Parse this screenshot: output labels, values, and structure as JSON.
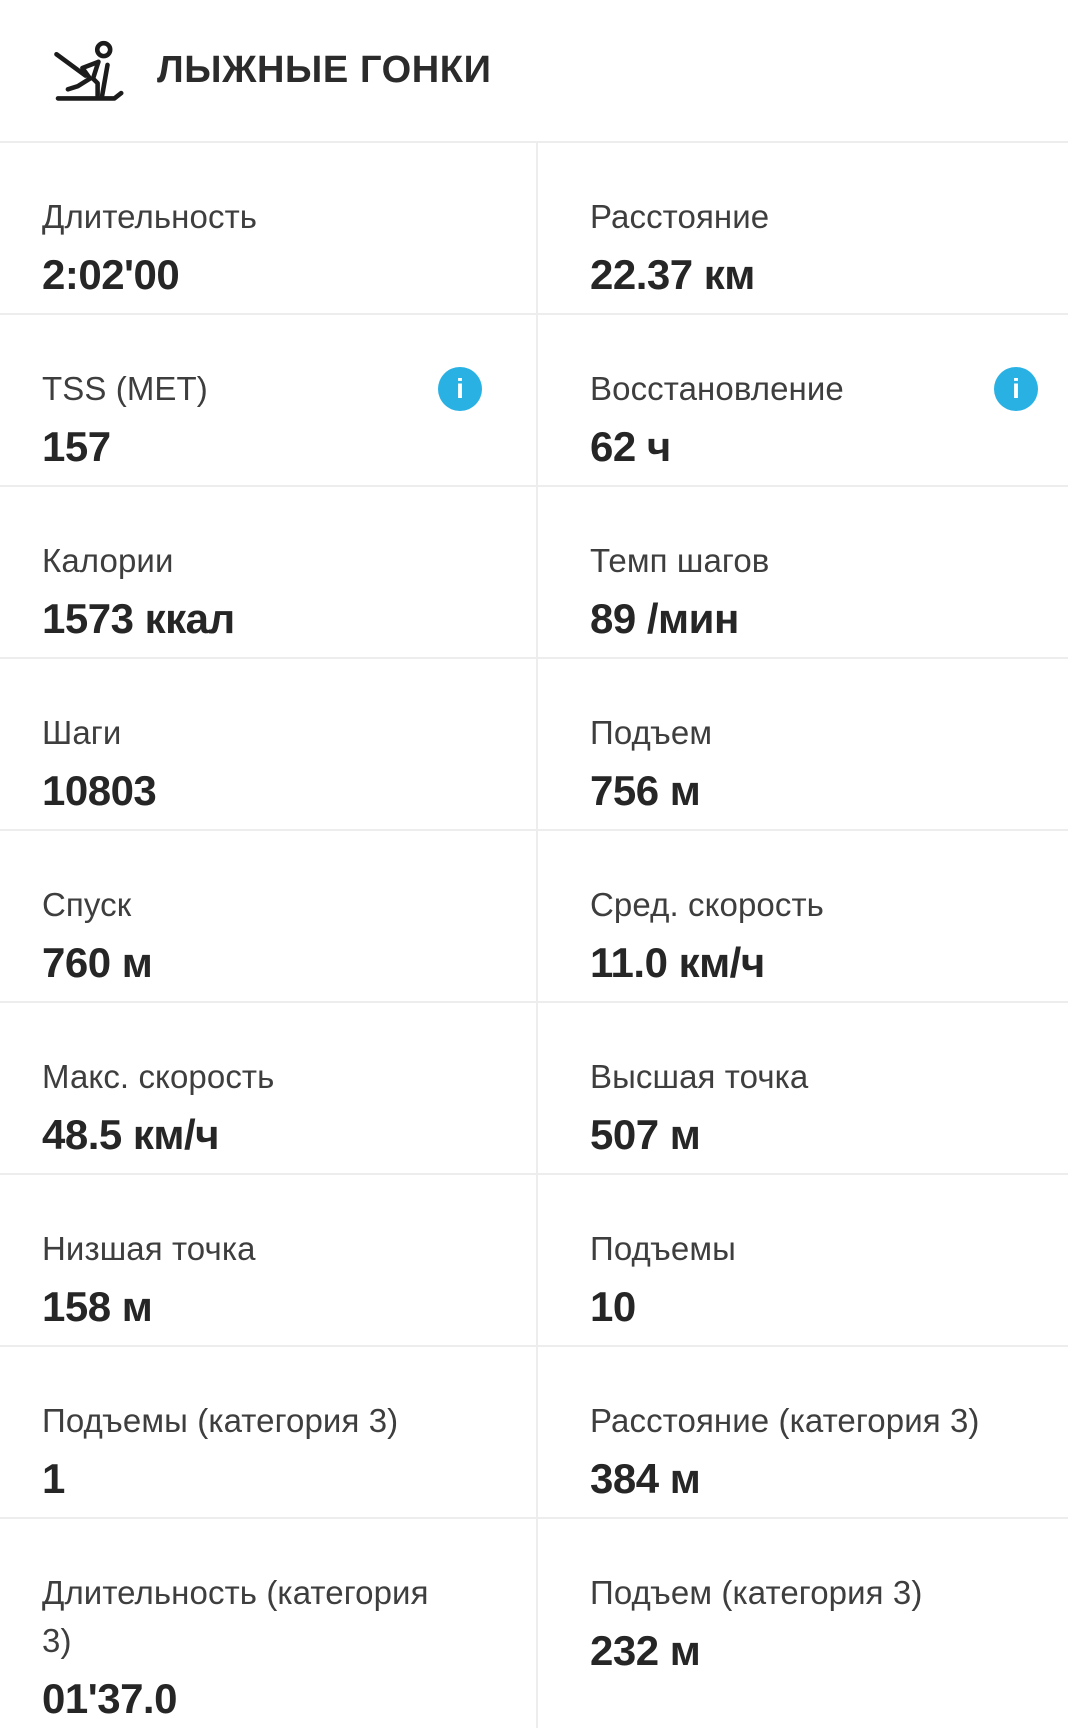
{
  "header": {
    "title": "ЛЫЖНЫЕ ГОНКИ",
    "icon": "cross-country-skier-icon"
  },
  "info_icon_glyph": "i",
  "colors": {
    "info_accent": "#29b1e4",
    "divider": "#ededed",
    "label_text": "#3e3e3e",
    "value_text": "#262626"
  },
  "stats": [
    {
      "label": "Длительность",
      "value": "2:02'00",
      "info": false
    },
    {
      "label": "Расстояние",
      "value": "22.37 км",
      "info": false
    },
    {
      "label": "TSS (MET)",
      "value": "157",
      "info": true
    },
    {
      "label": "Восстановление",
      "value": "62 ч",
      "info": true
    },
    {
      "label": "Калории",
      "value": "1573 ккал",
      "info": false
    },
    {
      "label": "Темп шагов",
      "value": "89 /мин",
      "info": false
    },
    {
      "label": "Шаги",
      "value": "10803",
      "info": false
    },
    {
      "label": "Подъем",
      "value": "756 м",
      "info": false
    },
    {
      "label": "Спуск",
      "value": "760 м",
      "info": false
    },
    {
      "label": "Сред. скорость",
      "value": "11.0 км/ч",
      "info": false
    },
    {
      "label": "Макс. скорость",
      "value": "48.5 км/ч",
      "info": false
    },
    {
      "label": "Высшая точка",
      "value": "507 м",
      "info": false
    },
    {
      "label": "Низшая точка",
      "value": "158 м",
      "info": false
    },
    {
      "label": "Подъемы",
      "value": "10",
      "info": false
    },
    {
      "label": "Подъемы (категория 3)",
      "value": "1",
      "info": false
    },
    {
      "label": "Расстояние (категория 3)",
      "value": "384 м",
      "info": false
    },
    {
      "label": "Длительность (категория 3)",
      "value": "01'37.0",
      "info": false
    },
    {
      "label": "Подъем (категория 3)",
      "value": "232 м",
      "info": false
    }
  ]
}
